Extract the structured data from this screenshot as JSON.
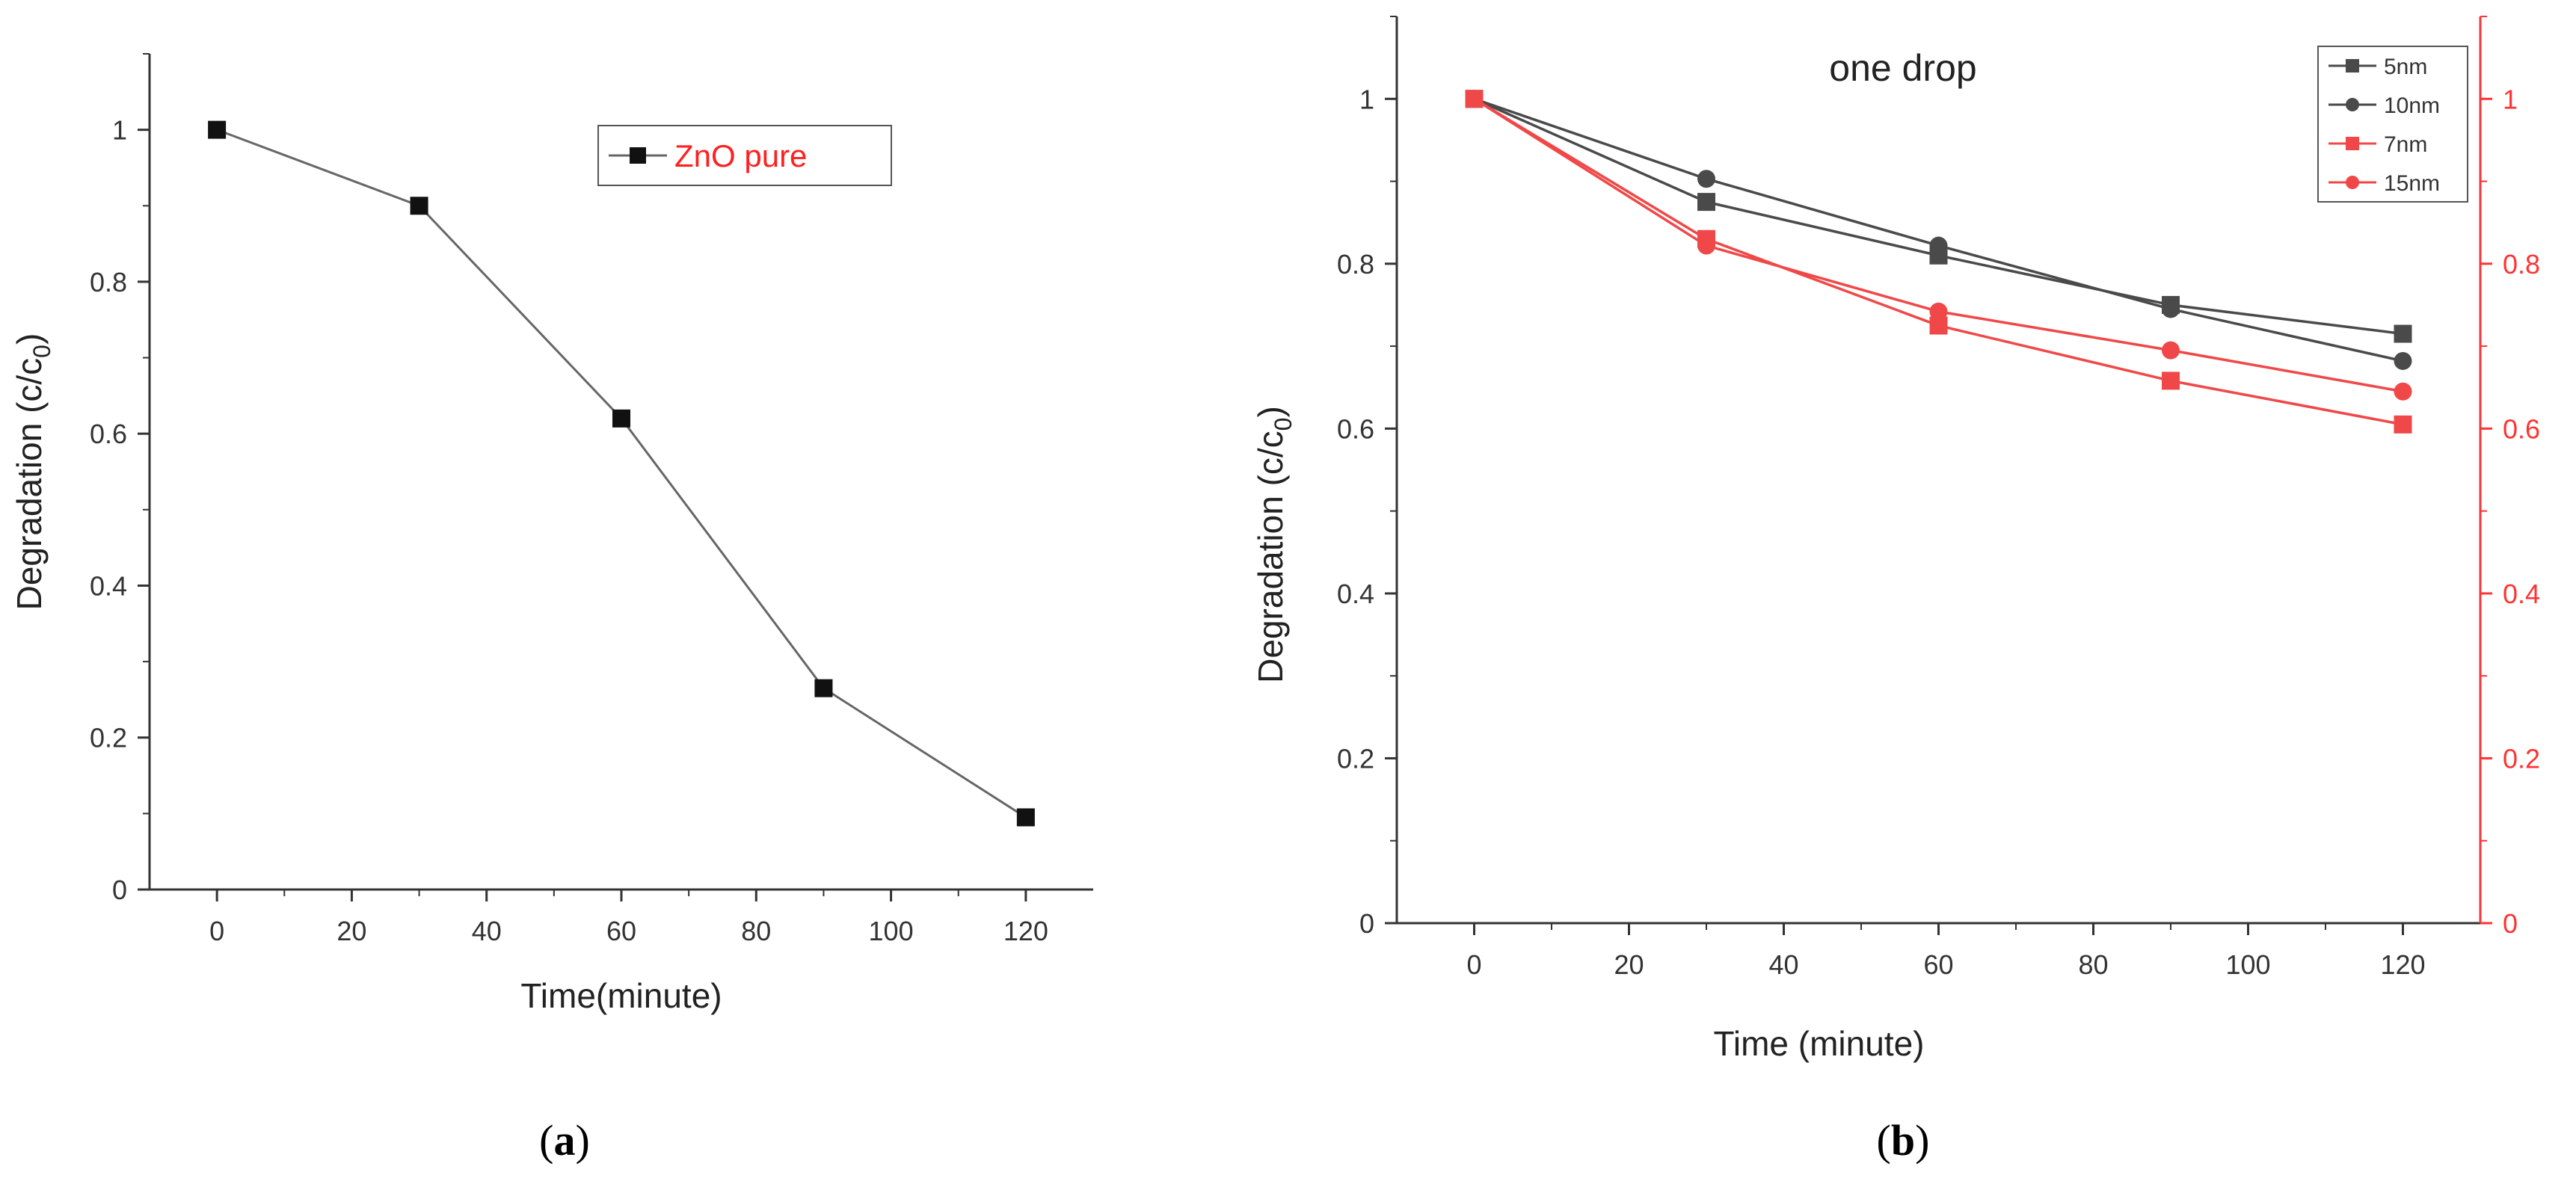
{
  "colors": {
    "black_series": "#4a4a4a",
    "red_series": "#f04848",
    "red_axis": "#ff3333",
    "axis": "#333333"
  },
  "chart_data": [
    {
      "panel_label": "a",
      "type": "line",
      "title": "",
      "xlabel": "Time(minute)",
      "ylabel": "Degradation (c/c",
      "ylabel_subscript": "0",
      "ylabel_close": ")",
      "xlim": [
        -10,
        130
      ],
      "ylim": [
        0,
        1.1
      ],
      "x_ticks": [
        0,
        20,
        40,
        60,
        80,
        100,
        120
      ],
      "x_tick_labels": [
        "0",
        "20",
        "40",
        "60",
        "80",
        "100",
        "120"
      ],
      "y_ticks": [
        0,
        0.2,
        0.4,
        0.6,
        0.8,
        1
      ],
      "y_tick_labels": [
        "0",
        "0.2",
        "0.4",
        "0.6",
        "0.8",
        "1"
      ],
      "legend_position": "top-right",
      "series": [
        {
          "name": "ZnO pure",
          "marker": "square",
          "color": "#111111",
          "line_color": "#666666",
          "legend_text_color": "#ff2020",
          "x": [
            0,
            30,
            60,
            90,
            120
          ],
          "values": [
            1.0,
            0.9,
            0.62,
            0.265,
            0.095
          ]
        }
      ]
    },
    {
      "panel_label": "b",
      "type": "line",
      "title": "one drop",
      "xlabel": "Time (minute)",
      "ylabel": "Degradation (c/c",
      "ylabel_subscript": "0",
      "ylabel_close": ")",
      "xlim": [
        -10,
        130
      ],
      "ylim": [
        0,
        1.1
      ],
      "x_ticks": [
        0,
        20,
        40,
        60,
        80,
        100,
        120
      ],
      "x_tick_labels": [
        "0",
        "20",
        "40",
        "60",
        "80",
        "100",
        "120"
      ],
      "y_ticks": [
        0,
        0.2,
        0.4,
        0.6,
        0.8,
        1
      ],
      "y_tick_labels": [
        "0",
        "0.2",
        "0.4",
        "0.6",
        "0.8",
        "1"
      ],
      "y2_ticks": [
        0,
        0.2,
        0.4,
        0.6,
        0.8,
        1
      ],
      "y2_tick_labels": [
        "0",
        "0.2",
        "0.4",
        "0.6",
        "0.8",
        "1"
      ],
      "legend_position": "top-right",
      "series": [
        {
          "name": "5nm",
          "marker": "square",
          "color": "#4a4a4a",
          "x": [
            0,
            30,
            60,
            90,
            120
          ],
          "values": [
            1.0,
            0.875,
            0.81,
            0.75,
            0.715
          ]
        },
        {
          "name": "10nm",
          "marker": "circle",
          "color": "#4a4a4a",
          "x": [
            0,
            30,
            60,
            90,
            120
          ],
          "values": [
            1.0,
            0.903,
            0.822,
            0.745,
            0.682
          ]
        },
        {
          "name": "7nm",
          "marker": "square",
          "color": "#f04848",
          "x": [
            0,
            30,
            60,
            90,
            120
          ],
          "values": [
            1.0,
            0.83,
            0.725,
            0.658,
            0.605
          ]
        },
        {
          "name": "15nm",
          "marker": "circle",
          "color": "#f04848",
          "x": [
            0,
            30,
            60,
            90,
            120
          ],
          "values": [
            1.0,
            0.822,
            0.742,
            0.695,
            0.645
          ]
        }
      ]
    }
  ]
}
